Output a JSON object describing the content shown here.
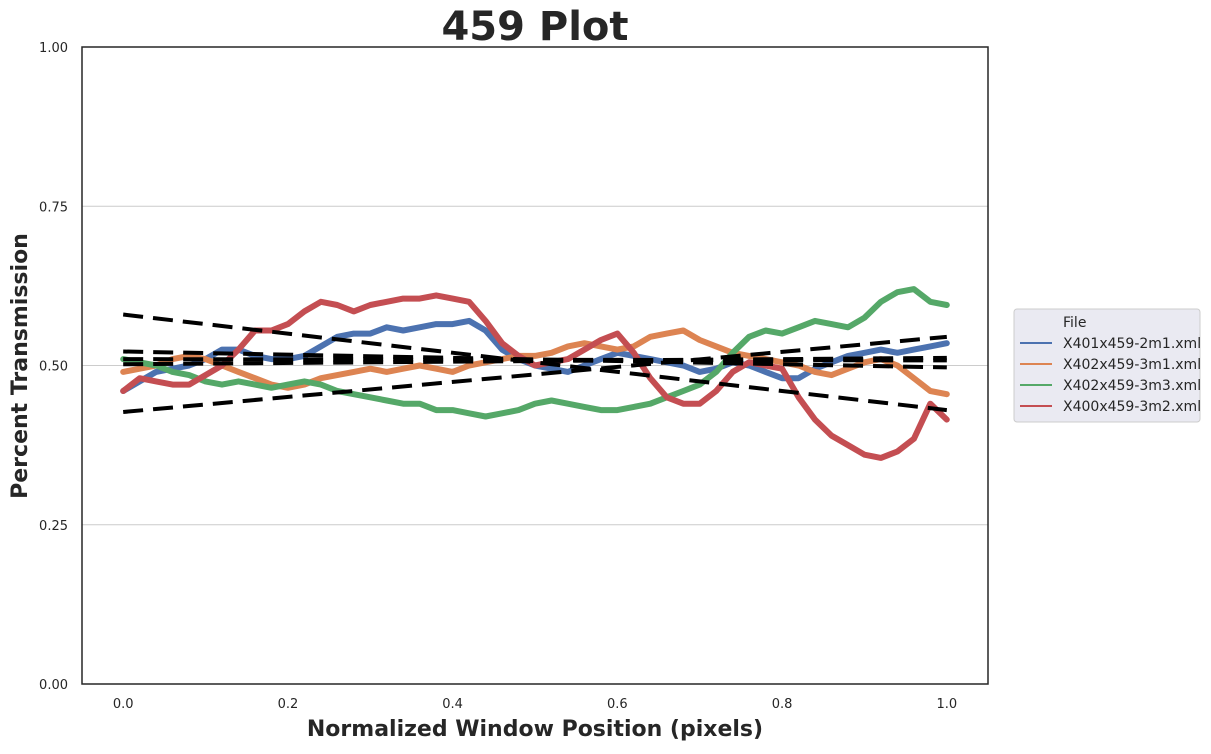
{
  "chart_data": {
    "type": "line",
    "title": "459 Plot",
    "xlabel": "Normalized Window Position (pixels)",
    "ylabel": "Percent Transmission",
    "xlim": [
      -0.05,
      1.05
    ],
    "ylim": [
      0,
      1
    ],
    "x_ticks": [
      0.0,
      0.2,
      0.4,
      0.6,
      0.8,
      1.0
    ],
    "x_tick_labels": [
      "0.0",
      "0.2",
      "0.4",
      "0.6",
      "0.8",
      "1.0"
    ],
    "y_ticks": [
      0.0,
      0.25,
      0.5,
      0.75,
      1.0
    ],
    "y_tick_labels": [
      "0.00",
      "0.25",
      "0.50",
      "0.75",
      "1.00"
    ],
    "grid": "horizontal",
    "legend": {
      "title": "File",
      "placement": "outside-right"
    },
    "series": [
      {
        "name": "X401x459-2m1.xml",
        "color": "#4c72b0",
        "x": [
          0.0,
          0.02,
          0.04,
          0.06,
          0.08,
          0.1,
          0.12,
          0.14,
          0.16,
          0.18,
          0.2,
          0.22,
          0.24,
          0.26,
          0.28,
          0.3,
          0.32,
          0.34,
          0.36,
          0.38,
          0.4,
          0.42,
          0.44,
          0.46,
          0.48,
          0.5,
          0.52,
          0.54,
          0.56,
          0.58,
          0.6,
          0.62,
          0.64,
          0.66,
          0.68,
          0.7,
          0.72,
          0.74,
          0.76,
          0.78,
          0.8,
          0.82,
          0.84,
          0.86,
          0.88,
          0.9,
          0.92,
          0.94,
          0.96,
          0.98,
          1.0
        ],
        "y": [
          0.46,
          0.475,
          0.49,
          0.495,
          0.5,
          0.51,
          0.525,
          0.525,
          0.515,
          0.51,
          0.51,
          0.515,
          0.53,
          0.545,
          0.55,
          0.55,
          0.56,
          0.555,
          0.56,
          0.565,
          0.565,
          0.57,
          0.555,
          0.525,
          0.51,
          0.5,
          0.495,
          0.49,
          0.5,
          0.51,
          0.52,
          0.515,
          0.51,
          0.505,
          0.5,
          0.49,
          0.495,
          0.505,
          0.5,
          0.49,
          0.48,
          0.48,
          0.495,
          0.505,
          0.515,
          0.52,
          0.525,
          0.52,
          0.525,
          0.53,
          0.535
        ]
      },
      {
        "name": "X402x459-3m1.xml",
        "color": "#dd8452",
        "x": [
          0.0,
          0.02,
          0.04,
          0.06,
          0.08,
          0.1,
          0.12,
          0.14,
          0.16,
          0.18,
          0.2,
          0.22,
          0.24,
          0.26,
          0.28,
          0.3,
          0.32,
          0.34,
          0.36,
          0.38,
          0.4,
          0.42,
          0.44,
          0.46,
          0.48,
          0.5,
          0.52,
          0.54,
          0.56,
          0.58,
          0.6,
          0.62,
          0.64,
          0.66,
          0.68,
          0.7,
          0.72,
          0.74,
          0.76,
          0.78,
          0.8,
          0.82,
          0.84,
          0.86,
          0.88,
          0.9,
          0.92,
          0.94,
          0.96,
          0.98,
          1.0
        ],
        "y": [
          0.49,
          0.495,
          0.5,
          0.51,
          0.515,
          0.51,
          0.5,
          0.49,
          0.48,
          0.47,
          0.465,
          0.47,
          0.48,
          0.485,
          0.49,
          0.495,
          0.49,
          0.495,
          0.5,
          0.495,
          0.49,
          0.5,
          0.505,
          0.51,
          0.515,
          0.515,
          0.52,
          0.53,
          0.535,
          0.53,
          0.525,
          0.53,
          0.545,
          0.55,
          0.555,
          0.54,
          0.53,
          0.52,
          0.515,
          0.51,
          0.505,
          0.5,
          0.49,
          0.485,
          0.495,
          0.505,
          0.51,
          0.5,
          0.48,
          0.46,
          0.455
        ]
      },
      {
        "name": "X402x459-3m3.xml",
        "color": "#55a868",
        "x": [
          0.0,
          0.02,
          0.04,
          0.06,
          0.08,
          0.1,
          0.12,
          0.14,
          0.16,
          0.18,
          0.2,
          0.22,
          0.24,
          0.26,
          0.28,
          0.3,
          0.32,
          0.34,
          0.36,
          0.38,
          0.4,
          0.42,
          0.44,
          0.46,
          0.48,
          0.5,
          0.52,
          0.54,
          0.56,
          0.58,
          0.6,
          0.62,
          0.64,
          0.66,
          0.68,
          0.7,
          0.72,
          0.74,
          0.76,
          0.78,
          0.8,
          0.82,
          0.84,
          0.86,
          0.88,
          0.9,
          0.92,
          0.94,
          0.96,
          0.98,
          1.0
        ],
        "y": [
          0.51,
          0.505,
          0.5,
          0.49,
          0.485,
          0.475,
          0.47,
          0.475,
          0.47,
          0.465,
          0.47,
          0.475,
          0.47,
          0.46,
          0.455,
          0.45,
          0.445,
          0.44,
          0.44,
          0.43,
          0.43,
          0.425,
          0.42,
          0.425,
          0.43,
          0.44,
          0.445,
          0.44,
          0.435,
          0.43,
          0.43,
          0.435,
          0.44,
          0.45,
          0.46,
          0.47,
          0.49,
          0.52,
          0.545,
          0.555,
          0.55,
          0.56,
          0.57,
          0.565,
          0.56,
          0.575,
          0.6,
          0.615,
          0.62,
          0.6,
          0.595
        ]
      },
      {
        "name": "X400x459-3m2.xml",
        "color": "#c44e52",
        "x": [
          0.0,
          0.02,
          0.04,
          0.06,
          0.08,
          0.1,
          0.12,
          0.14,
          0.16,
          0.18,
          0.2,
          0.22,
          0.24,
          0.26,
          0.28,
          0.3,
          0.32,
          0.34,
          0.36,
          0.38,
          0.4,
          0.42,
          0.44,
          0.46,
          0.48,
          0.5,
          0.52,
          0.54,
          0.56,
          0.58,
          0.6,
          0.62,
          0.64,
          0.66,
          0.68,
          0.7,
          0.72,
          0.74,
          0.76,
          0.78,
          0.8,
          0.82,
          0.84,
          0.86,
          0.88,
          0.9,
          0.92,
          0.94,
          0.96,
          0.98,
          1.0
        ],
        "y": [
          0.46,
          0.48,
          0.475,
          0.47,
          0.47,
          0.485,
          0.5,
          0.525,
          0.555,
          0.555,
          0.565,
          0.585,
          0.6,
          0.595,
          0.585,
          0.595,
          0.6,
          0.605,
          0.605,
          0.61,
          0.605,
          0.6,
          0.57,
          0.535,
          0.515,
          0.5,
          0.505,
          0.51,
          0.525,
          0.54,
          0.55,
          0.52,
          0.48,
          0.45,
          0.44,
          0.44,
          0.46,
          0.49,
          0.505,
          0.5,
          0.495,
          0.45,
          0.415,
          0.39,
          0.375,
          0.36,
          0.355,
          0.365,
          0.385,
          0.44,
          0.415
        ]
      }
    ],
    "trend_lines": [
      {
        "style": "dashed",
        "color": "#000000",
        "x": [
          0.0,
          1.0
        ],
        "y": [
          0.58,
          0.43
        ]
      },
      {
        "style": "dashed",
        "color": "#000000",
        "x": [
          0.0,
          1.0
        ],
        "y": [
          0.427,
          0.545
        ]
      },
      {
        "style": "dashed",
        "color": "#000000",
        "x": [
          0.0,
          1.0
        ],
        "y": [
          0.522,
          0.497
        ]
      },
      {
        "style": "dashed",
        "color": "#000000",
        "x": [
          0.0,
          1.0
        ],
        "y": [
          0.51,
          0.508
        ]
      },
      {
        "style": "dashed",
        "color": "#000000",
        "x": [
          0.0,
          1.0
        ],
        "y": [
          0.502,
          0.512
        ]
      }
    ]
  }
}
